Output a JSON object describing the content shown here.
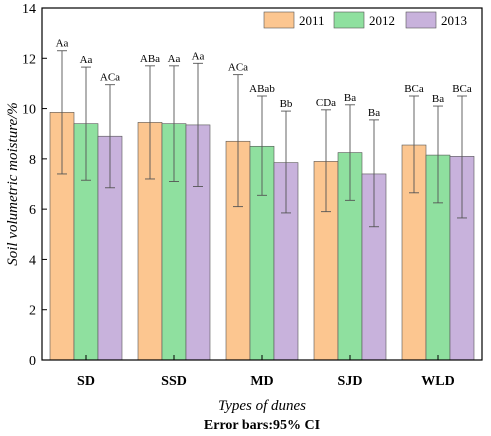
{
  "chart_data": {
    "type": "bar",
    "xlabel": "Types of dunes",
    "ylabel": "Soil volumetric moisture/%",
    "footnote": "Error bars:95% CI",
    "ylim": [
      0,
      14
    ],
    "yticks": [
      0,
      2,
      4,
      6,
      8,
      10,
      12,
      14
    ],
    "grid": false,
    "legend_position": "top-right",
    "categories": [
      "SD",
      "SSD",
      "MD",
      "SJD",
      "WLD"
    ],
    "series": [
      {
        "name": "2011",
        "color": "#fcc690",
        "values": [
          9.85,
          9.45,
          8.7,
          7.9,
          8.55
        ],
        "ci_low": [
          7.4,
          7.2,
          6.1,
          5.9,
          6.65
        ],
        "ci_high": [
          12.3,
          11.7,
          11.35,
          9.95,
          10.5
        ],
        "labels": [
          "Aa",
          "ABa",
          "ACa",
          "CDa",
          "BCa"
        ]
      },
      {
        "name": "2012",
        "color": "#8fe09f",
        "values": [
          9.4,
          9.4,
          8.5,
          8.25,
          8.15
        ],
        "ci_low": [
          7.15,
          7.1,
          6.55,
          6.35,
          6.25
        ],
        "ci_high": [
          11.65,
          11.7,
          10.5,
          10.15,
          10.1
        ],
        "labels": [
          "Aa",
          "Aa",
          "ABab",
          "Ba",
          "Ba"
        ]
      },
      {
        "name": "2013",
        "color": "#c8b2dc",
        "values": [
          8.9,
          9.35,
          7.85,
          7.4,
          8.1
        ],
        "ci_low": [
          6.85,
          6.9,
          5.85,
          5.3,
          5.65
        ],
        "ci_high": [
          10.95,
          11.8,
          9.9,
          9.55,
          10.5
        ],
        "labels": [
          "ACa",
          "Aa",
          "Bb",
          "Ba",
          "BCa"
        ]
      }
    ]
  }
}
